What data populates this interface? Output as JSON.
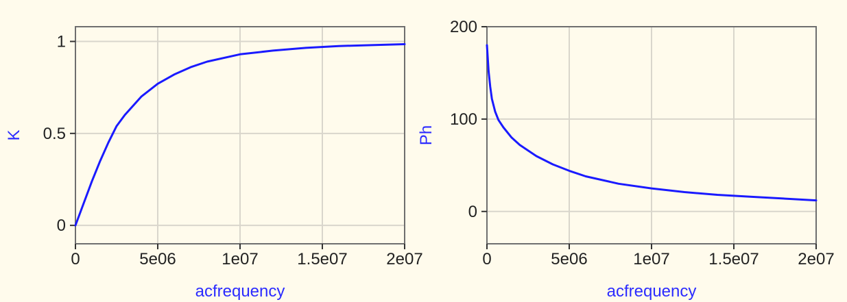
{
  "chart_data": [
    {
      "type": "line",
      "xlabel": "acfrequency",
      "ylabel": "K",
      "xlim": [
        0,
        20000000
      ],
      "ylim": [
        -0.1,
        1.08
      ],
      "grid": true,
      "x_ticks": [
        0,
        5000000,
        10000000,
        15000000,
        20000000
      ],
      "x_tick_labels": [
        "0",
        "5e06",
        "1e07",
        "1.5e07",
        "2e07"
      ],
      "y_ticks": [
        0,
        0.5,
        1
      ],
      "y_tick_labels": [
        "0",
        "0.5",
        "1"
      ],
      "series": [
        {
          "color": "#1a1aff",
          "x": [
            0,
            500000,
            1000000,
            1500000,
            2000000,
            2500000,
            3000000,
            4000000,
            5000000,
            6000000,
            7000000,
            8000000,
            10000000,
            12000000,
            14000000,
            16000000,
            18000000,
            20000000
          ],
          "y": [
            0,
            0.12,
            0.24,
            0.35,
            0.45,
            0.54,
            0.6,
            0.7,
            0.77,
            0.82,
            0.86,
            0.89,
            0.93,
            0.95,
            0.965,
            0.975,
            0.98,
            0.985
          ]
        }
      ]
    },
    {
      "type": "line",
      "xlabel": "acfrequency",
      "ylabel": "Ph",
      "xlim": [
        0,
        20000000
      ],
      "ylim": [
        -35,
        200
      ],
      "grid": true,
      "x_ticks": [
        0,
        5000000,
        10000000,
        15000000,
        20000000
      ],
      "x_tick_labels": [
        "0",
        "5e06",
        "1e07",
        "1.5e07",
        "2e07"
      ],
      "y_ticks": [
        0,
        100,
        200
      ],
      "y_tick_labels": [
        "0",
        "100",
        "200"
      ],
      "series": [
        {
          "color": "#1a1aff",
          "x": [
            0,
            100000,
            200000,
            300000,
            500000,
            700000,
            1000000,
            1500000,
            2000000,
            3000000,
            4000000,
            5000000,
            6000000,
            7000000,
            8000000,
            10000000,
            12000000,
            14000000,
            16000000,
            18000000,
            20000000
          ],
          "y": [
            180,
            152,
            135,
            122,
            108,
            99,
            91,
            80,
            72,
            60,
            51,
            44,
            38,
            34,
            30,
            25,
            21,
            18,
            16,
            14,
            12
          ]
        }
      ]
    }
  ]
}
